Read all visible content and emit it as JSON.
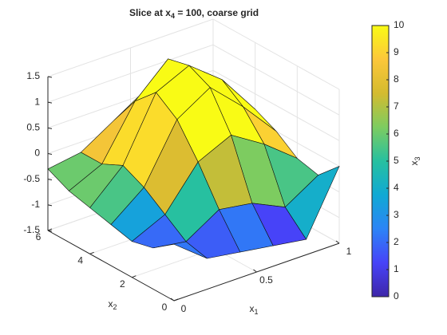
{
  "chart_data": {
    "type": "surface3d",
    "title": [
      "Slice  at  x",
      "4",
      "  =  100,  coarse  grid"
    ],
    "xlabel": [
      "x",
      "1"
    ],
    "ylabel": [
      "x",
      "2"
    ],
    "colorbar_label": [
      "x",
      "3"
    ],
    "x1": [
      0,
      0.2,
      0.4,
      0.6,
      0.8,
      1
    ],
    "x2": [
      0,
      1,
      2,
      3,
      4,
      5,
      6
    ],
    "z": [
      [
        -0.4,
        -0.9,
        -1.0,
        -1.1,
        -1.2,
        0.0
      ],
      [
        -0.7,
        -0.8,
        -0.4,
        -0.5,
        -0.8,
        -0.4
      ],
      [
        -0.8,
        -0.5,
        0.3,
        0.6,
        0.2,
        -0.3
      ],
      [
        -0.7,
        -0.2,
        0.9,
        1.3,
        0.7,
        0.0
      ],
      [
        -0.6,
        0.0,
        1.2,
        1.5,
        1.0,
        0.2
      ],
      [
        -0.5,
        -0.2,
        0.8,
        1.4,
        0.8,
        0.0
      ],
      [
        -0.3,
        -0.2,
        0.2,
        0.6,
        0.3,
        -0.1
      ]
    ],
    "c": [
      [
        5,
        1,
        0,
        0,
        0,
        10
      ],
      [
        2,
        1,
        5,
        4,
        1,
        5
      ],
      [
        1,
        4,
        10,
        10,
        10,
        6
      ],
      [
        2,
        7,
        10,
        10,
        10,
        10
      ],
      [
        3,
        10,
        10,
        10,
        10,
        10
      ],
      [
        4,
        7,
        10,
        10,
        10,
        10
      ],
      [
        6,
        7,
        10,
        10,
        10,
        9
      ]
    ],
    "xlim": [
      0,
      1
    ],
    "xticks": [
      0,
      0.5,
      1
    ],
    "ylim": [
      0,
      6
    ],
    "yticks": [
      0,
      2,
      4,
      6
    ],
    "zlim": [
      -1.5,
      1.5
    ],
    "zticks": [
      -1.5,
      -1,
      -0.5,
      0,
      0.5,
      1,
      1.5
    ],
    "clim": [
      0,
      10
    ],
    "cticks": [
      0,
      1,
      2,
      3,
      4,
      5,
      6,
      7,
      8,
      9,
      10
    ],
    "colormap": [
      "#3e26a8",
      "#4743f8",
      "#2c84f6",
      "#10a9d4",
      "#27c0a0",
      "#7dcc60",
      "#d4bb2f",
      "#fcc73a",
      "#f9fb15"
    ],
    "grid": true
  }
}
